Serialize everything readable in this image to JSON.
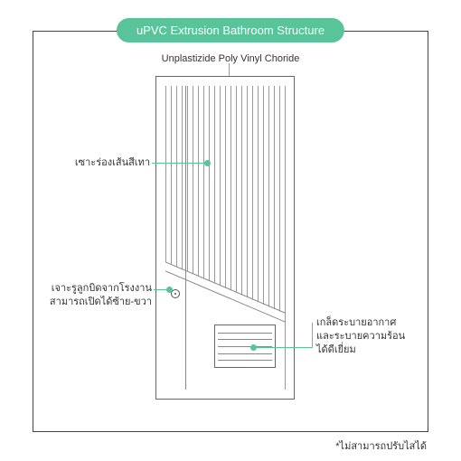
{
  "title": {
    "bold": "uPVC Extrusion Bathroom",
    "light": "Structure"
  },
  "colors": {
    "accent": "#59c49a",
    "line": "#888888",
    "border": "#444444",
    "text": "#333333"
  },
  "labels": {
    "top": "Unplastizide Poly Vinyl Choride",
    "leftUpper": "เซาะร่องเส้นสีเทา",
    "leftLower": "เจาะรูลูกบิดจากโรงงาน\nสามารถเปิดได้ซ้าย-ขวา",
    "right": "เกล็ดระบายอากาศ\nและระบายความร้อน\nได้ดีเยี่ยม"
  },
  "footnote": "*ไม่สามารถปรับไสได้",
  "door": {
    "stripe_count": 22,
    "vent_slats": 5
  }
}
